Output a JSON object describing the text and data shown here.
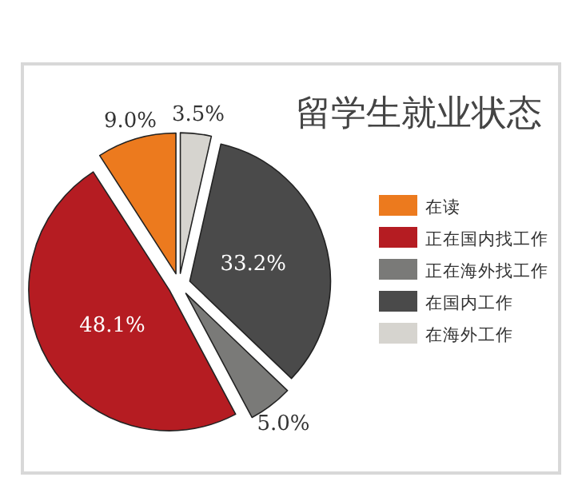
{
  "chart_data": {
    "type": "pie",
    "title": "留学生就业状态",
    "categories": [
      "在读",
      "正在国内找工作",
      "正在海外找工作",
      "在国内工作",
      "在海外工作"
    ],
    "values": [
      9.0,
      48.1,
      5.0,
      33.2,
      3.5
    ],
    "colors": [
      "#ec7a1e",
      "#b51c22",
      "#7a7a78",
      "#4a4a4a",
      "#d6d4cf"
    ],
    "value_labels": [
      "9.0%",
      "48.1%",
      "5.0%",
      "33.2%",
      "3.5%"
    ],
    "legend": "right"
  }
}
